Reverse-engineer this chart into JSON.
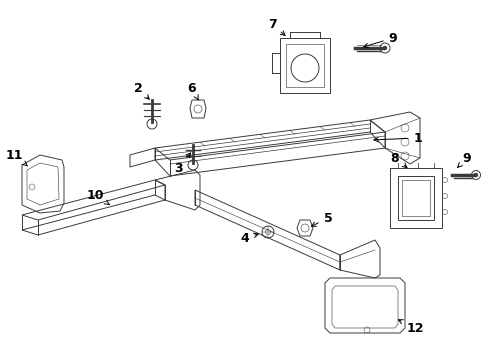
{
  "background_color": "#ffffff",
  "line_color": "#3a3a3a",
  "label_color": "#000000",
  "label_fontsize": 9,
  "fig_width": 4.9,
  "fig_height": 3.6,
  "dpi": 100
}
